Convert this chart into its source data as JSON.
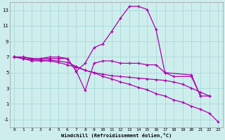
{
  "xlabel": "Windchill (Refroidissement éolien,°C)",
  "background_color": "#ceeeed",
  "grid_color": "#aad8d8",
  "line_color": "#aa00aa",
  "xlim": [
    -0.5,
    23.5
  ],
  "ylim": [
    -2,
    14
  ],
  "xticks": [
    0,
    1,
    2,
    3,
    4,
    5,
    6,
    7,
    8,
    9,
    10,
    11,
    12,
    13,
    14,
    15,
    16,
    17,
    18,
    19,
    20,
    21,
    22,
    23
  ],
  "yticks": [
    -1,
    1,
    3,
    5,
    7,
    9,
    11,
    13
  ],
  "curves": [
    {
      "x": [
        0,
        1,
        2,
        3,
        4,
        5,
        6,
        7,
        8,
        9,
        10,
        11,
        12,
        13,
        14,
        15,
        16,
        17,
        20,
        21,
        22
      ],
      "y": [
        7,
        7,
        6.8,
        6.8,
        6.8,
        6.8,
        6.8,
        5.2,
        6.2,
        8.2,
        8.7,
        10.3,
        12.0,
        13.5,
        13.5,
        13.1,
        10.5,
        5.0,
        4.7,
        2.0,
        2.0
      ]
    },
    {
      "x": [
        0,
        1,
        2,
        3,
        4,
        5,
        6,
        7,
        8,
        9,
        10,
        11,
        12,
        13,
        14,
        15,
        16,
        17,
        18,
        20,
        21
      ],
      "y": [
        7,
        7,
        6.8,
        6.8,
        7.0,
        7.0,
        6.8,
        5.2,
        2.7,
        6.2,
        6.5,
        6.5,
        6.2,
        6.2,
        6.2,
        6.0,
        6.0,
        5.0,
        4.5,
        4.5,
        2.0
      ]
    },
    {
      "x": [
        0,
        1,
        2,
        3,
        4,
        5,
        6,
        7,
        8,
        9,
        10,
        11,
        12,
        13,
        14,
        15,
        16,
        17,
        18,
        19,
        20,
        21,
        22
      ],
      "y": [
        7,
        6.8,
        6.7,
        6.6,
        6.6,
        6.5,
        6.3,
        5.8,
        5.3,
        5.0,
        4.8,
        4.6,
        4.5,
        4.4,
        4.3,
        4.2,
        4.1,
        4.0,
        3.8,
        3.5,
        3.0,
        2.5,
        2.0
      ]
    },
    {
      "x": [
        0,
        1,
        2,
        3,
        4,
        5,
        6,
        7,
        8,
        9,
        10,
        11,
        12,
        13,
        14,
        15,
        16,
        17,
        18,
        19,
        20,
        21,
        22,
        23
      ],
      "y": [
        7,
        6.8,
        6.5,
        6.5,
        6.5,
        6.3,
        6.0,
        5.7,
        5.3,
        5.0,
        4.5,
        4.2,
        3.8,
        3.5,
        3.1,
        2.8,
        2.3,
        2.0,
        1.5,
        1.2,
        0.7,
        0.3,
        -0.2,
        -1.3
      ]
    }
  ]
}
